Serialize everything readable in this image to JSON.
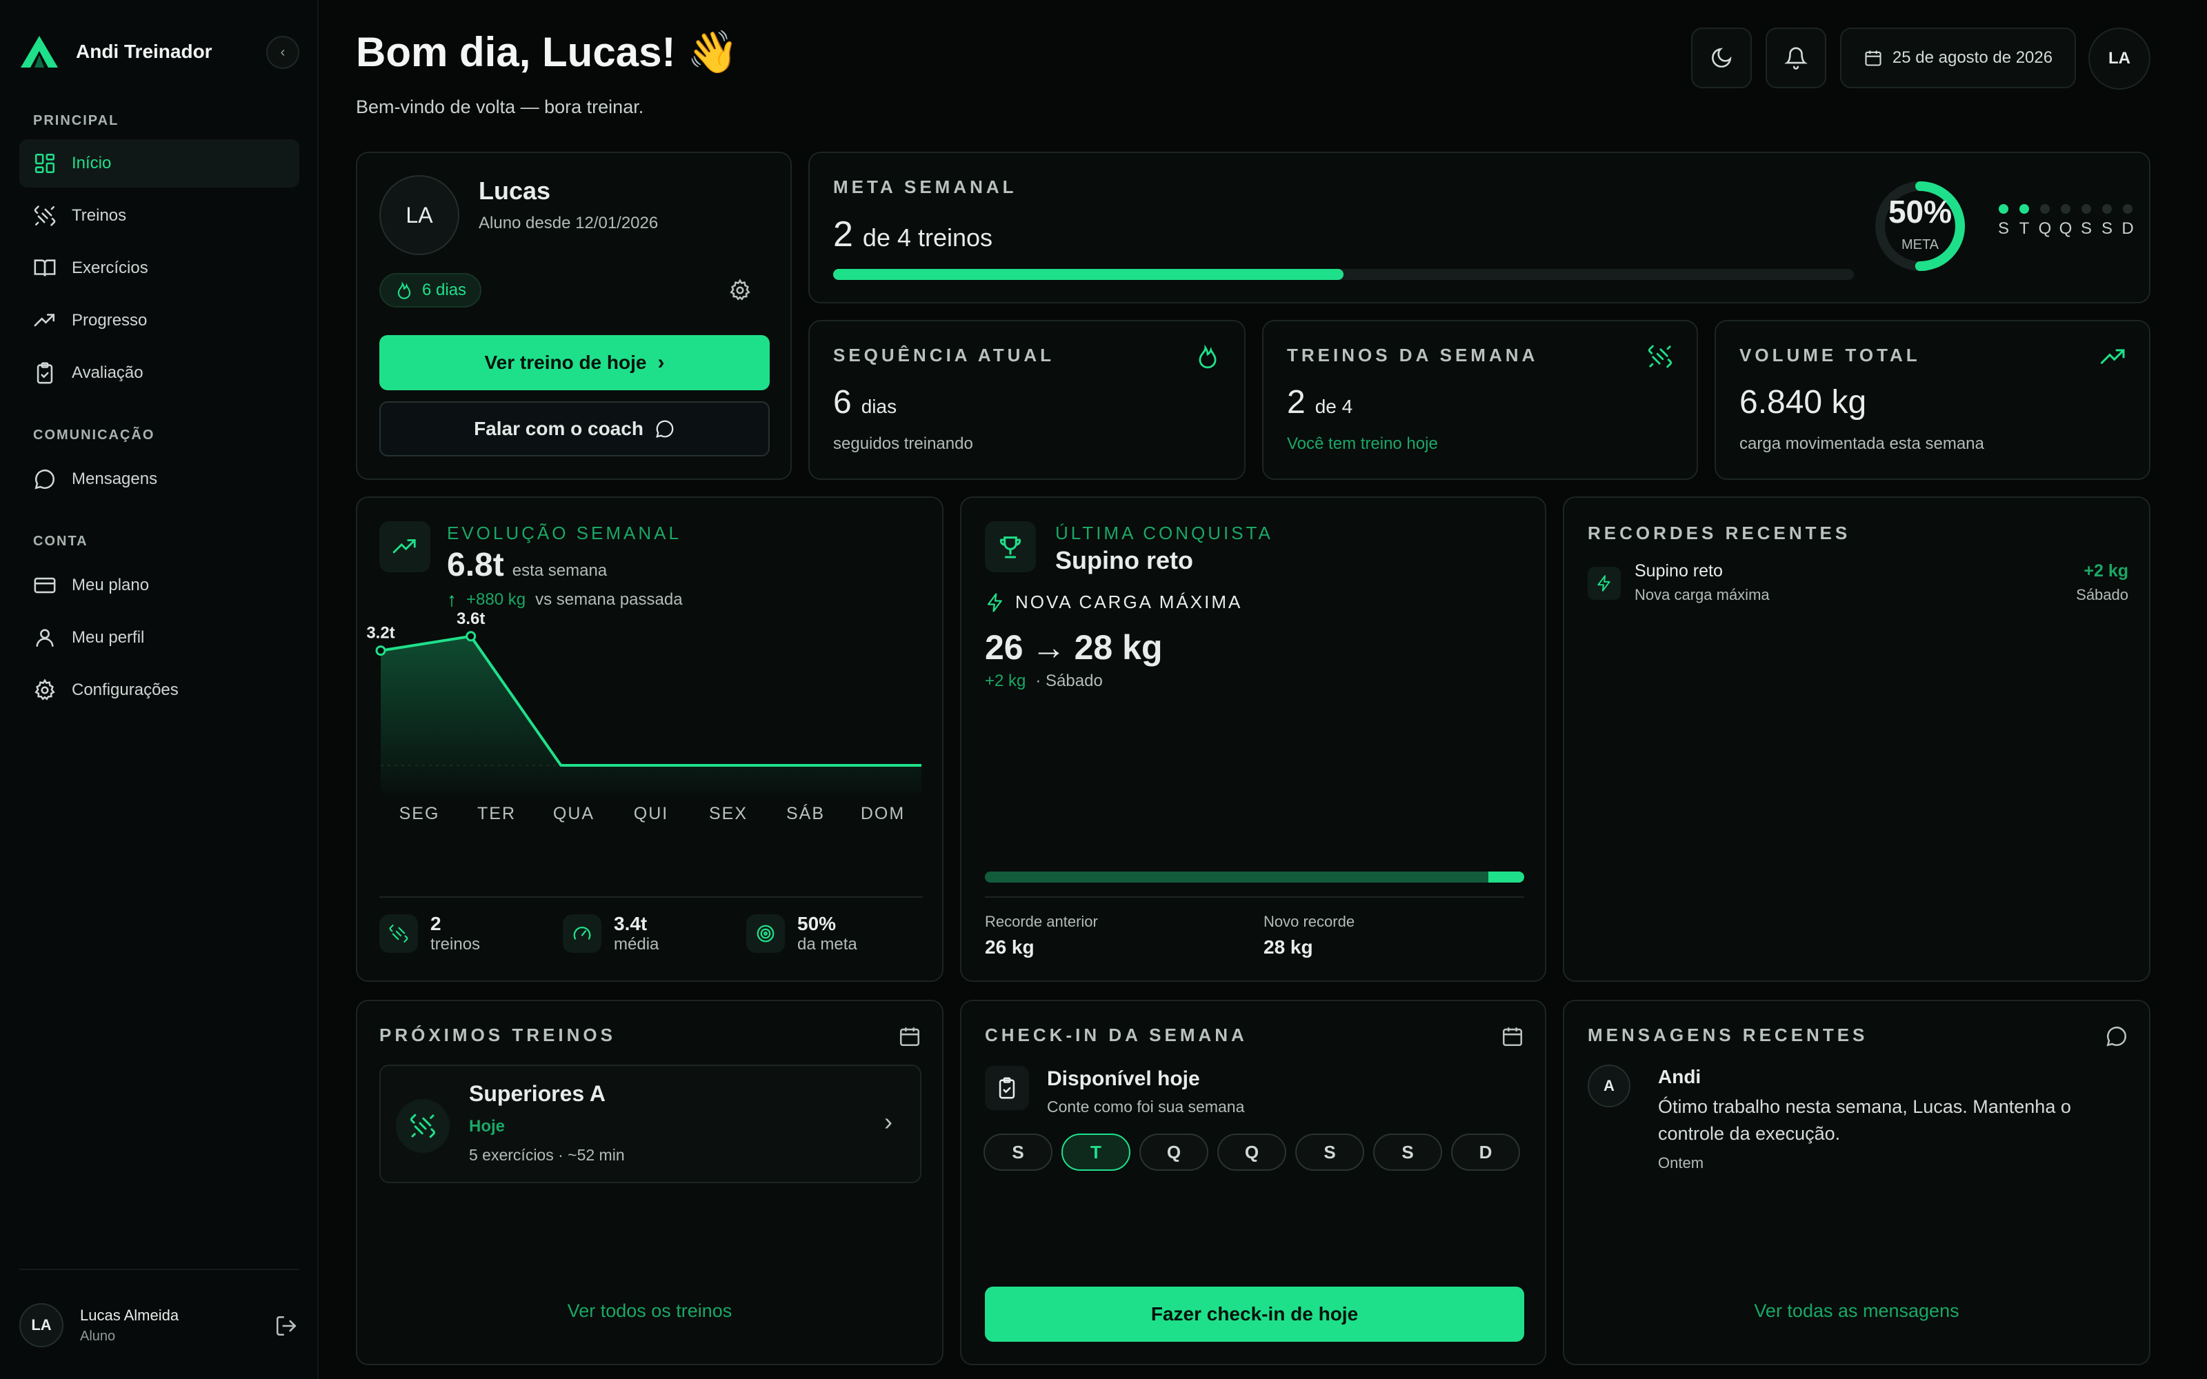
{
  "app": {
    "brand": "Andi Treinador"
  },
  "sidebar": {
    "sections": [
      {
        "label": "PRINCIPAL"
      },
      {
        "label": "COMUNICAÇÃO"
      },
      {
        "label": "CONTA"
      }
    ],
    "items": [
      {
        "label": "Início",
        "icon": "dashboard-icon"
      },
      {
        "label": "Treinos",
        "icon": "dumbbell-icon"
      },
      {
        "label": "Exercícios",
        "icon": "book-icon"
      },
      {
        "label": "Progresso",
        "icon": "trending-up-icon"
      },
      {
        "label": "Avaliação",
        "icon": "clipboard-check-icon"
      },
      {
        "label": "Mensagens",
        "icon": "chat-icon"
      },
      {
        "label": "Meu plano",
        "icon": "credit-card-icon"
      },
      {
        "label": "Meu perfil",
        "icon": "user-icon"
      },
      {
        "label": "Configurações",
        "icon": "gear-icon"
      }
    ],
    "user": {
      "initials": "LA",
      "name": "Lucas Almeida",
      "role": "Aluno"
    }
  },
  "header": {
    "greeting": "Bom dia, Lucas! 👋",
    "subtitle": "Bem-vindo de volta — bora treinar.",
    "date": "25 de agosto de 2026",
    "avatar": "LA"
  },
  "profile": {
    "initials": "LA",
    "name": "Lucas",
    "since": "Aluno desde 12/01/2026",
    "streak": "6 dias",
    "primary_cta": "Ver treino de hoje",
    "secondary_cta": "Falar com o coach"
  },
  "weekly_goal": {
    "label": "META SEMANAL",
    "count": "2",
    "total": "de 4 treinos",
    "progress": 0.5,
    "percent": "50%",
    "meta_label": "META",
    "days": [
      "S",
      "T",
      "Q",
      "Q",
      "S",
      "S",
      "D"
    ],
    "days_done": [
      true,
      true,
      false,
      false,
      false,
      false,
      false
    ]
  },
  "stats": [
    {
      "label": "SEQUÊNCIA ATUAL",
      "value": "6",
      "unit": "dias",
      "caption": "seguidos treinando",
      "icon": "flame-icon"
    },
    {
      "label": "TREINOS DA SEMANA",
      "value": "2",
      "unit": "de 4",
      "caption": "Você tem treino hoje",
      "icon": "dumbbell-icon"
    },
    {
      "label": "VOLUME TOTAL",
      "value": "6.840 kg",
      "unit": "",
      "caption": "carga movimentada esta semana",
      "icon": "trending-up-icon"
    }
  ],
  "evolution": {
    "label": "EVOLUÇÃO SEMANAL",
    "value": "6.8t",
    "value_suffix": "esta semana",
    "delta": "+880 kg",
    "delta_suffix": "vs semana passada",
    "point_labels": [
      "3.2t",
      "3.6t"
    ],
    "summary": [
      {
        "value": "2",
        "label": "treinos"
      },
      {
        "value": "3.4t",
        "label": "média"
      },
      {
        "value": "50%",
        "label": "da meta"
      }
    ]
  },
  "chart_data": {
    "type": "area",
    "categories": [
      "SEG",
      "TER",
      "QUA",
      "QUI",
      "SEX",
      "SÁB",
      "DOM"
    ],
    "values": [
      3.2,
      3.6,
      0,
      0,
      0,
      0,
      0
    ],
    "title": "",
    "xlabel": "",
    "ylabel": "",
    "ylim": [
      0,
      4
    ]
  },
  "achievement": {
    "label": "ÚLTIMA CONQUISTA",
    "exercise": "Supino reto",
    "tag": "NOVA CARGA MÁXIMA",
    "from": "26",
    "arrow": "→",
    "to": "28 kg",
    "delta": "+2 kg",
    "when": "· Sábado",
    "progress": 0.93,
    "prev_label": "Recorde anterior",
    "prev_value": "26 kg",
    "new_label": "Novo recorde",
    "new_value": "28 kg"
  },
  "records": {
    "label": "RECORDES RECENTES",
    "items": [
      {
        "title": "Supino reto",
        "subtitle": "Nova carga máxima",
        "delta": "+2 kg",
        "when": "Sábado"
      }
    ]
  },
  "upcoming": {
    "label": "PRÓXIMOS TREINOS",
    "workout": {
      "title": "Superiores A",
      "when": "Hoje",
      "details": "5 exercícios · ~52 min"
    },
    "link": "Ver todos os treinos"
  },
  "checkin": {
    "label": "CHECK-IN DA SEMANA",
    "status_title": "Disponível hoje",
    "status_sub": "Conte como foi sua semana",
    "days": [
      "S",
      "T",
      "Q",
      "Q",
      "S",
      "S",
      "D"
    ],
    "active_day": 1,
    "cta": "Fazer check-in de hoje"
  },
  "messages": {
    "label": "MENSAGENS RECENTES",
    "items": [
      {
        "initial": "A",
        "author": "Andi",
        "text": "Ótimo trabalho nesta semana, Lucas. Mantenha o controle da execução.",
        "when": "Ontem"
      }
    ],
    "link": "Ver todas as mensagens"
  },
  "colors": {
    "accent": "#1fe08a",
    "background": "#050807",
    "card": "#080c0b",
    "border": "#1d2524"
  }
}
